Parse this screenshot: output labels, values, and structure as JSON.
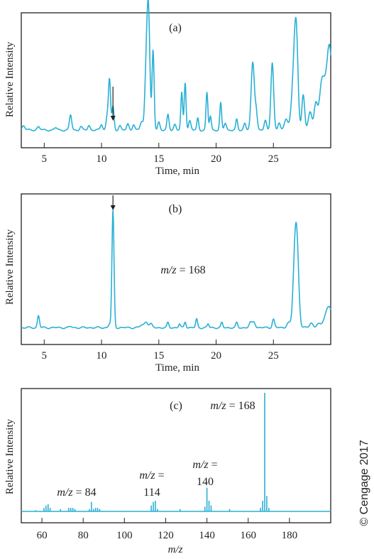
{
  "chart_data": [
    {
      "type": "line",
      "panel_label": "(a)",
      "xlabel": "Time, min",
      "ylabel": "Relative Intensity",
      "xlim": [
        3,
        30
      ],
      "ylim": [
        0,
        100
      ],
      "xticks": [
        5,
        10,
        15,
        20,
        25
      ],
      "xtick_labels": [
        "5",
        "10",
        "15",
        "20",
        "25"
      ],
      "grid": false,
      "baseline": 3,
      "peaks": [
        {
          "x": 3.2,
          "y": 4,
          "w": 0.12
        },
        {
          "x": 4.5,
          "y": 3,
          "w": 0.12
        },
        {
          "x": 6.0,
          "y": 2,
          "w": 0.12
        },
        {
          "x": 7.3,
          "y": 13,
          "w": 0.1
        },
        {
          "x": 8.2,
          "y": 3,
          "w": 0.1
        },
        {
          "x": 8.9,
          "y": 4,
          "w": 0.1
        },
        {
          "x": 10.0,
          "y": 5,
          "w": 0.1
        },
        {
          "x": 10.5,
          "y": 12,
          "w": 0.1
        },
        {
          "x": 10.7,
          "y": 43,
          "w": 0.09
        },
        {
          "x": 11.0,
          "y": 20,
          "w": 0.09
        },
        {
          "x": 11.6,
          "y": 4,
          "w": 0.1
        },
        {
          "x": 12.3,
          "y": 5,
          "w": 0.1
        },
        {
          "x": 12.8,
          "y": 5,
          "w": 0.1
        },
        {
          "x": 13.5,
          "y": 7,
          "w": 0.12
        },
        {
          "x": 13.9,
          "y": 50,
          "w": 0.12
        },
        {
          "x": 14.1,
          "y": 98,
          "w": 0.12
        },
        {
          "x": 14.5,
          "y": 68,
          "w": 0.09
        },
        {
          "x": 15.0,
          "y": 7,
          "w": 0.1
        },
        {
          "x": 15.8,
          "y": 13,
          "w": 0.09
        },
        {
          "x": 16.4,
          "y": 5,
          "w": 0.1
        },
        {
          "x": 17.0,
          "y": 32,
          "w": 0.08
        },
        {
          "x": 17.3,
          "y": 41,
          "w": 0.08
        },
        {
          "x": 17.7,
          "y": 8,
          "w": 0.1
        },
        {
          "x": 18.4,
          "y": 10,
          "w": 0.08
        },
        {
          "x": 19.2,
          "y": 32,
          "w": 0.08
        },
        {
          "x": 19.5,
          "y": 12,
          "w": 0.08
        },
        {
          "x": 20.4,
          "y": 23,
          "w": 0.08
        },
        {
          "x": 20.8,
          "y": 6,
          "w": 0.1
        },
        {
          "x": 21.8,
          "y": 9,
          "w": 0.08
        },
        {
          "x": 22.5,
          "y": 6,
          "w": 0.1
        },
        {
          "x": 23.2,
          "y": 58,
          "w": 0.14
        },
        {
          "x": 23.5,
          "y": 15,
          "w": 0.1
        },
        {
          "x": 24.3,
          "y": 8,
          "w": 0.1
        },
        {
          "x": 24.9,
          "y": 58,
          "w": 0.12
        },
        {
          "x": 25.5,
          "y": 6,
          "w": 0.1
        },
        {
          "x": 26.1,
          "y": 10,
          "w": 0.15
        },
        {
          "x": 26.8,
          "y": 48,
          "w": 0.2
        },
        {
          "x": 27.0,
          "y": 64,
          "w": 0.15
        },
        {
          "x": 27.6,
          "y": 30,
          "w": 0.12
        },
        {
          "x": 28.2,
          "y": 16,
          "w": 0.15
        },
        {
          "x": 28.7,
          "y": 23,
          "w": 0.15
        },
        {
          "x": 29.2,
          "y": 35,
          "w": 0.2
        },
        {
          "x": 29.5,
          "y": 23,
          "w": 0.2
        },
        {
          "x": 29.9,
          "y": 70,
          "w": 0.22
        }
      ],
      "arrow_x": 11.0
    },
    {
      "type": "line",
      "panel_label": "(b)",
      "annotation": {
        "prefix": "m/z",
        "text": " = 168"
      },
      "xlabel": "Time, min",
      "ylabel": "Relative Intensity",
      "xlim": [
        3,
        30
      ],
      "ylim": [
        0,
        100
      ],
      "xticks": [
        5,
        10,
        15,
        20,
        25
      ],
      "xtick_labels": [
        "5",
        "10",
        "15",
        "20",
        "25"
      ],
      "grid": false,
      "baseline": 1,
      "peaks": [
        {
          "x": 4.5,
          "y": 10,
          "w": 0.09
        },
        {
          "x": 7.3,
          "y": 1,
          "w": 0.1
        },
        {
          "x": 10.7,
          "y": 3,
          "w": 0.1
        },
        {
          "x": 11.0,
          "y": 97,
          "w": 0.09
        },
        {
          "x": 13.5,
          "y": 2,
          "w": 0.15
        },
        {
          "x": 13.9,
          "y": 5,
          "w": 0.15
        },
        {
          "x": 14.3,
          "y": 3,
          "w": 0.12
        },
        {
          "x": 15.8,
          "y": 4,
          "w": 0.08
        },
        {
          "x": 16.8,
          "y": 3,
          "w": 0.08
        },
        {
          "x": 17.3,
          "y": 5,
          "w": 0.08
        },
        {
          "x": 18.3,
          "y": 7,
          "w": 0.08
        },
        {
          "x": 19.3,
          "y": 3,
          "w": 0.08
        },
        {
          "x": 20.5,
          "y": 4,
          "w": 0.08
        },
        {
          "x": 21.8,
          "y": 4,
          "w": 0.08
        },
        {
          "x": 23.0,
          "y": 4,
          "w": 0.12
        },
        {
          "x": 23.3,
          "y": 5,
          "w": 0.12
        },
        {
          "x": 25.0,
          "y": 7,
          "w": 0.1
        },
        {
          "x": 26.3,
          "y": 4,
          "w": 0.15
        },
        {
          "x": 26.9,
          "y": 65,
          "w": 0.17
        },
        {
          "x": 27.1,
          "y": 40,
          "w": 0.15
        },
        {
          "x": 28.3,
          "y": 4,
          "w": 0.15
        },
        {
          "x": 28.9,
          "y": 3,
          "w": 0.15
        },
        {
          "x": 29.6,
          "y": 9,
          "w": 0.25
        },
        {
          "x": 29.95,
          "y": 13,
          "w": 0.25
        }
      ],
      "arrow_x": 11.0
    },
    {
      "type": "bar",
      "panel_label": "(c)",
      "xlabel": "m/z",
      "ylabel": "Relative Intensity",
      "xlim": [
        50,
        200
      ],
      "ylim": [
        0,
        100
      ],
      "xticks": [
        60,
        80,
        100,
        120,
        140,
        160,
        180
      ],
      "xtick_labels": [
        "60",
        "80",
        "100",
        "120",
        "140",
        "160",
        "180"
      ],
      "grid": false,
      "x": [
        57,
        61,
        62,
        63,
        64,
        69,
        73,
        74,
        75,
        76,
        83,
        84,
        85,
        86,
        87,
        88,
        113,
        114,
        115,
        116,
        127,
        139,
        140,
        141,
        142,
        151,
        166,
        167,
        168,
        169,
        170
      ],
      "values": [
        1,
        3,
        5,
        6,
        3,
        2,
        3,
        3,
        3,
        2,
        2,
        8,
        2,
        3,
        3,
        2,
        5,
        8,
        9,
        2,
        2,
        4,
        20,
        9,
        5,
        2,
        3,
        9,
        100,
        13,
        3
      ],
      "annotations": [
        {
          "lines": [
            {
              "prefix": "m/z",
              "text": " = 84"
            }
          ]
        },
        {
          "lines": [
            {
              "prefix": "m/z",
              "text": " ="
            },
            {
              "prefix": "",
              "text": "114"
            }
          ]
        },
        {
          "lines": [
            {
              "prefix": "m/z",
              "text": " ="
            },
            {
              "prefix": "",
              "text": "140"
            }
          ]
        },
        {
          "lines": [
            {
              "prefix": "m/z",
              "text": " = 168"
            }
          ]
        }
      ]
    }
  ],
  "copyright": "© Cengage 2017"
}
